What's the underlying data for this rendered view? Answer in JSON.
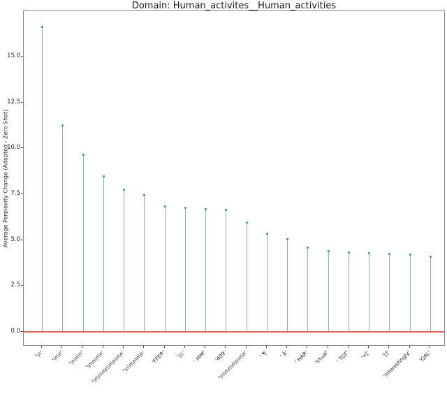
{
  "figure": {
    "title": "Domain: Human_activites__Human_activities"
  },
  "chart_data": {
    "type": "stem",
    "title": "Domain: Human_activites__Human_activities",
    "xlabel": "",
    "ylabel": "Average Perplexity Change (Adapted - Zero Shot)",
    "categories": [
      "'\\n'",
      "'\\n\\n'",
      "'\\n\\n\\n'",
      "'\\n\\n\\n\\n'",
      "'\\n\\n\\n\\n\\n\\n\\n\\n'",
      "'\\n\\n\\n\\n\\n'",
      "'FFER'",
      "'));'",
      "' HIM'",
      "'409'",
      "'\\n\\n\\n\\n\\n\\n\\n'",
      "' ¶'",
      "' â'",
      "' HAR'",
      "'irtual'",
      "' TGF'",
      "'=['",
      "'[]'",
      "'interestingly'",
      "'GAL'"
    ],
    "values": [
      16.63,
      11.25,
      9.65,
      8.5,
      7.77,
      7.46,
      6.85,
      6.76,
      6.7,
      6.66,
      5.98,
      5.37,
      5.05,
      4.62,
      4.4,
      4.35,
      4.3,
      4.27,
      4.23,
      4.1
    ],
    "baseline_value": 0.0,
    "yticks": [
      0.0,
      2.5,
      5.0,
      7.5,
      10.0,
      12.5,
      15.0
    ],
    "ytick_labels": [
      "0.0",
      "2.5",
      "5.0",
      "7.5",
      "10.0",
      "12.5",
      "15.0"
    ],
    "ylim": [
      -0.83,
      17.47
    ],
    "grid": false,
    "legend": null,
    "colors": {
      "stem_line": "#7fb2d6",
      "stem_marker": "#4b93c5",
      "baseline": "#e85f5c",
      "spine": "#8a8a8a",
      "text": "#262626"
    }
  }
}
